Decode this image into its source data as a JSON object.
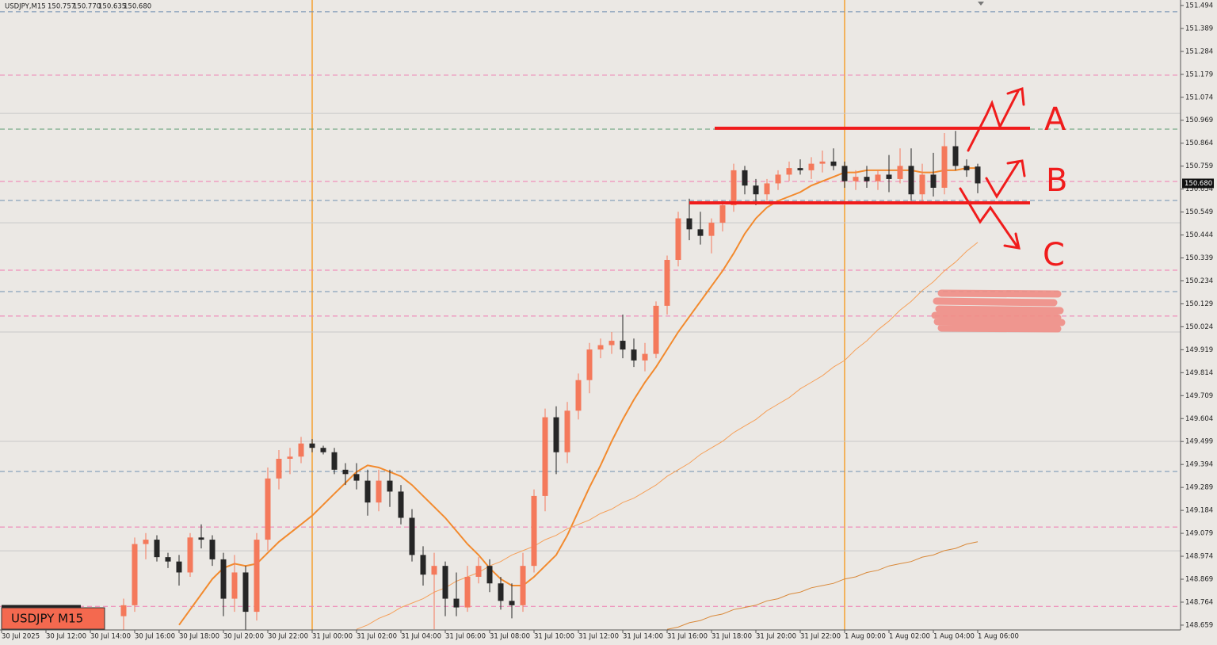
{
  "chart_data": {
    "type": "candlestick",
    "header": {
      "symbol": "USDJPY,M15",
      "open": "150.757",
      "high": "150.770",
      "low": "150.635",
      "close": "150.680"
    },
    "badge": "USDJPY M15",
    "bull_color": "#f4795b",
    "bear_color": "#262626",
    "categories": [
      "30 Jul 2025",
      null,
      null,
      null,
      "30 Jul 12:00",
      null,
      null,
      null,
      "30 Jul 14:00",
      null,
      null,
      null,
      "30 Jul 16:00",
      null,
      null,
      null,
      "30 Jul 18:00",
      null,
      null,
      null,
      "30 Jul 20:00",
      null,
      null,
      null,
      "30 Jul 22:00",
      null,
      null,
      null,
      "31 Jul 00:00",
      null,
      null,
      null,
      "31 Jul 02:00",
      null,
      null,
      null,
      "31 Jul 04:00",
      null,
      null,
      null,
      "31 Jul 06:00",
      null,
      null,
      null,
      "31 Jul 08:00",
      null,
      null,
      null,
      "31 Jul 10:00",
      null,
      null,
      null,
      "31 Jul 12:00",
      null,
      null,
      null,
      "31 Jul 14:00",
      null,
      null,
      null,
      "31 Jul 16:00",
      null,
      null,
      null,
      "31 Jul 18:00",
      null,
      null,
      null,
      "31 Jul 20:00",
      null,
      null,
      null,
      "31 Jul 22:00",
      null,
      null,
      null,
      "1 Aug 00:00",
      null,
      null,
      null,
      "1 Aug 02:00",
      null,
      null,
      null,
      "1 Aug 04:00",
      null,
      null,
      null,
      "1 Aug 06:00"
    ],
    "open": [
      null,
      null,
      null,
      null,
      null,
      null,
      null,
      null,
      null,
      null,
      null,
      148.7,
      148.75,
      149.03,
      149.05,
      148.97,
      148.95,
      148.9,
      149.06,
      149.05,
      148.96,
      148.78,
      148.9,
      148.72,
      149.05,
      149.33,
      149.42,
      149.43,
      149.49,
      149.47,
      149.45,
      149.37,
      149.35,
      149.32,
      149.22,
      149.32,
      149.27,
      149.15,
      148.98,
      148.89,
      148.93,
      148.78,
      148.74,
      148.88,
      148.93,
      148.85,
      148.77,
      148.75,
      148.93,
      149.25,
      149.61,
      149.45,
      149.64,
      149.78,
      149.92,
      149.94,
      149.96,
      149.92,
      149.87,
      149.9,
      150.12,
      150.33,
      150.52,
      150.47,
      150.44,
      150.5,
      150.58,
      150.74,
      150.67,
      150.63,
      150.68,
      150.72,
      150.75,
      150.74,
      150.77,
      150.78,
      150.76,
      150.69,
      150.71,
      150.69,
      150.72,
      150.7,
      150.76,
      150.63,
      150.72,
      150.66,
      150.85,
      150.76,
      150.757
    ],
    "high": [
      null,
      null,
      null,
      null,
      null,
      null,
      null,
      null,
      null,
      null,
      null,
      148.78,
      149.06,
      149.08,
      149.07,
      148.99,
      148.98,
      149.08,
      149.12,
      149.07,
      148.99,
      148.98,
      148.93,
      149.08,
      149.38,
      149.46,
      149.47,
      149.52,
      149.51,
      149.48,
      149.47,
      149.4,
      149.4,
      149.37,
      149.37,
      149.37,
      149.3,
      149.19,
      149.02,
      148.99,
      148.95,
      148.9,
      148.93,
      148.97,
      148.96,
      148.88,
      148.85,
      148.99,
      149.28,
      149.65,
      149.66,
      149.68,
      149.81,
      149.95,
      149.97,
      150.0,
      150.08,
      149.97,
      149.95,
      150.14,
      150.35,
      150.55,
      150.61,
      150.55,
      150.52,
      150.6,
      150.77,
      150.76,
      150.7,
      150.7,
      150.74,
      150.78,
      150.79,
      150.8,
      150.83,
      150.84,
      150.78,
      150.74,
      150.76,
      150.74,
      150.81,
      150.84,
      150.84,
      150.77,
      150.82,
      150.91,
      150.92,
      150.79,
      150.77
    ],
    "low": [
      null,
      null,
      null,
      null,
      null,
      null,
      null,
      null,
      null,
      null,
      null,
      148.6,
      148.72,
      148.96,
      148.95,
      148.92,
      148.84,
      148.88,
      149.01,
      148.93,
      148.7,
      148.72,
      148.62,
      148.68,
      149.0,
      149.28,
      149.35,
      149.4,
      149.45,
      149.44,
      149.35,
      149.3,
      149.28,
      149.16,
      149.18,
      149.2,
      149.12,
      148.95,
      148.84,
      148.64,
      148.7,
      148.7,
      148.72,
      148.85,
      148.81,
      148.73,
      148.69,
      148.72,
      148.9,
      149.18,
      149.35,
      149.4,
      149.6,
      149.72,
      149.88,
      149.9,
      149.88,
      149.84,
      149.82,
      149.88,
      150.08,
      150.3,
      150.42,
      150.4,
      150.36,
      150.46,
      150.55,
      150.63,
      150.58,
      150.6,
      150.65,
      150.69,
      150.72,
      150.7,
      150.73,
      150.74,
      150.66,
      150.65,
      150.66,
      150.65,
      150.64,
      150.68,
      150.6,
      150.59,
      150.62,
      150.63,
      150.74,
      150.71,
      150.635
    ],
    "close": [
      null,
      null,
      null,
      null,
      null,
      null,
      null,
      null,
      null,
      null,
      null,
      148.75,
      149.03,
      149.05,
      148.97,
      148.95,
      148.9,
      149.06,
      149.05,
      148.96,
      148.78,
      148.9,
      148.72,
      149.05,
      149.33,
      149.42,
      149.43,
      149.49,
      149.47,
      149.45,
      149.37,
      149.35,
      149.32,
      149.22,
      149.32,
      149.27,
      149.15,
      148.98,
      148.89,
      148.93,
      148.78,
      148.74,
      148.88,
      148.93,
      148.85,
      148.77,
      148.75,
      148.93,
      149.25,
      149.61,
      149.45,
      149.64,
      149.78,
      149.92,
      149.94,
      149.96,
      149.92,
      149.87,
      149.9,
      150.12,
      150.33,
      150.52,
      150.47,
      150.44,
      150.5,
      150.58,
      150.74,
      150.67,
      150.63,
      150.68,
      150.72,
      150.75,
      150.74,
      150.77,
      150.78,
      150.76,
      150.69,
      150.71,
      150.69,
      150.72,
      150.7,
      150.76,
      150.63,
      150.72,
      150.66,
      150.85,
      150.76,
      150.74,
      150.68
    ],
    "indicators": [
      {
        "color": "#f28a2e",
        "width": 2,
        "values": [
          null,
          null,
          null,
          null,
          null,
          null,
          null,
          null,
          null,
          null,
          null,
          null,
          null,
          null,
          null,
          null,
          148.66,
          148.73,
          148.8,
          148.87,
          148.92,
          148.94,
          148.93,
          148.94,
          148.99,
          149.04,
          149.08,
          149.12,
          149.16,
          149.21,
          149.26,
          149.31,
          149.36,
          149.39,
          149.38,
          149.36,
          149.34,
          149.3,
          149.25,
          149.2,
          149.15,
          149.09,
          149.03,
          148.98,
          148.92,
          148.87,
          148.84,
          148.84,
          148.88,
          148.93,
          148.98,
          149.07,
          149.18,
          149.29,
          149.39,
          149.5,
          149.6,
          149.69,
          149.77,
          149.84,
          149.92,
          150.0,
          150.07,
          150.14,
          150.21,
          150.28,
          150.36,
          150.45,
          150.52,
          150.57,
          150.6,
          150.62,
          150.64,
          150.67,
          150.69,
          150.71,
          150.73,
          150.73,
          150.74,
          150.74,
          150.74,
          150.74,
          150.74,
          150.73,
          150.73,
          150.74,
          150.74,
          150.75,
          150.75
        ]
      },
      {
        "color": "#f5a05a",
        "width": 1,
        "values": [
          null,
          null,
          null,
          null,
          null,
          null,
          null,
          null,
          null,
          null,
          null,
          null,
          null,
          null,
          null,
          null,
          null,
          null,
          null,
          null,
          null,
          null,
          null,
          null,
          null,
          null,
          null,
          null,
          null,
          null,
          null,
          null,
          148.64,
          148.66,
          148.69,
          148.71,
          148.74,
          148.76,
          148.78,
          148.81,
          148.83,
          148.86,
          148.88,
          148.9,
          148.93,
          148.95,
          148.98,
          149.0,
          149.02,
          149.05,
          149.07,
          149.1,
          149.12,
          149.14,
          149.17,
          149.19,
          149.22,
          149.24,
          149.27,
          149.3,
          149.34,
          149.37,
          149.4,
          149.44,
          149.47,
          149.5,
          149.54,
          149.57,
          149.6,
          149.64,
          149.67,
          149.7,
          149.74,
          149.77,
          149.8,
          149.84,
          149.87,
          149.92,
          149.96,
          150.01,
          150.05,
          150.1,
          150.14,
          150.19,
          150.23,
          150.28,
          150.32,
          150.37,
          150.41
        ]
      },
      {
        "color": "#d9893a",
        "width": 1,
        "values": [
          null,
          null,
          null,
          null,
          null,
          null,
          null,
          null,
          null,
          null,
          null,
          null,
          null,
          null,
          null,
          null,
          null,
          null,
          null,
          null,
          null,
          null,
          null,
          null,
          null,
          null,
          null,
          null,
          null,
          null,
          null,
          null,
          null,
          null,
          null,
          null,
          null,
          null,
          null,
          null,
          null,
          null,
          null,
          null,
          null,
          null,
          null,
          null,
          null,
          null,
          null,
          null,
          null,
          null,
          null,
          null,
          null,
          null,
          null,
          null,
          148.64,
          148.65,
          148.67,
          148.68,
          148.7,
          148.71,
          148.73,
          148.74,
          148.75,
          148.77,
          148.78,
          148.8,
          148.81,
          148.83,
          148.84,
          148.85,
          148.87,
          148.88,
          148.9,
          148.91,
          148.93,
          148.94,
          148.95,
          148.97,
          148.98,
          149.0,
          149.01,
          149.03,
          149.04
        ]
      }
    ],
    "levels": [
      {
        "price": 151.465,
        "color": "#6f8fb0",
        "dashed": true
      },
      {
        "price": 151.175,
        "color": "#f07ab0",
        "dashed": true
      },
      {
        "price": 151.0,
        "color": "#c8c8c8",
        "dashed": false
      },
      {
        "price": 150.928,
        "color": "#5a9a70",
        "dashed": true
      },
      {
        "price": 150.689,
        "color": "#f07ab0",
        "dashed": true
      },
      {
        "price": 150.602,
        "color": "#6f8fb0",
        "dashed": true
      },
      {
        "price": 150.5,
        "color": "#c8c8c8",
        "dashed": false
      },
      {
        "price": 150.283,
        "color": "#f07ab0",
        "dashed": true
      },
      {
        "price": 150.185,
        "color": "#6f8fb0",
        "dashed": true
      },
      {
        "price": 150.073,
        "color": "#f07ab0",
        "dashed": true
      },
      {
        "price": 150.0,
        "color": "#c8c8c8",
        "dashed": false
      },
      {
        "price": 149.5,
        "color": "#c8c8c8",
        "dashed": false
      },
      {
        "price": 149.362,
        "color": "#6f8fb0",
        "dashed": true
      },
      {
        "price": 149.108,
        "color": "#f07ab0",
        "dashed": true
      },
      {
        "price": 148.999,
        "color": "#c8c8c8",
        "dashed": false
      },
      {
        "price": 148.745,
        "color": "#f07ab0",
        "dashed": true
      }
    ],
    "range_lines": [
      150.932,
      150.591
    ],
    "annotations": [
      "A",
      "B",
      "C"
    ],
    "last_price": {
      "value": 150.68,
      "label": "150.680"
    },
    "ylim": [
      148.637,
      151.519
    ],
    "yticks": [
      151.494,
      151.389,
      151.284,
      151.179,
      151.074,
      150.969,
      150.864,
      150.759,
      150.654,
      150.549,
      150.444,
      150.339,
      150.234,
      150.129,
      150.024,
      149.919,
      149.814,
      149.709,
      149.604,
      149.499,
      149.394,
      149.289,
      149.184,
      149.079,
      148.974,
      148.869,
      148.764,
      148.659
    ]
  }
}
